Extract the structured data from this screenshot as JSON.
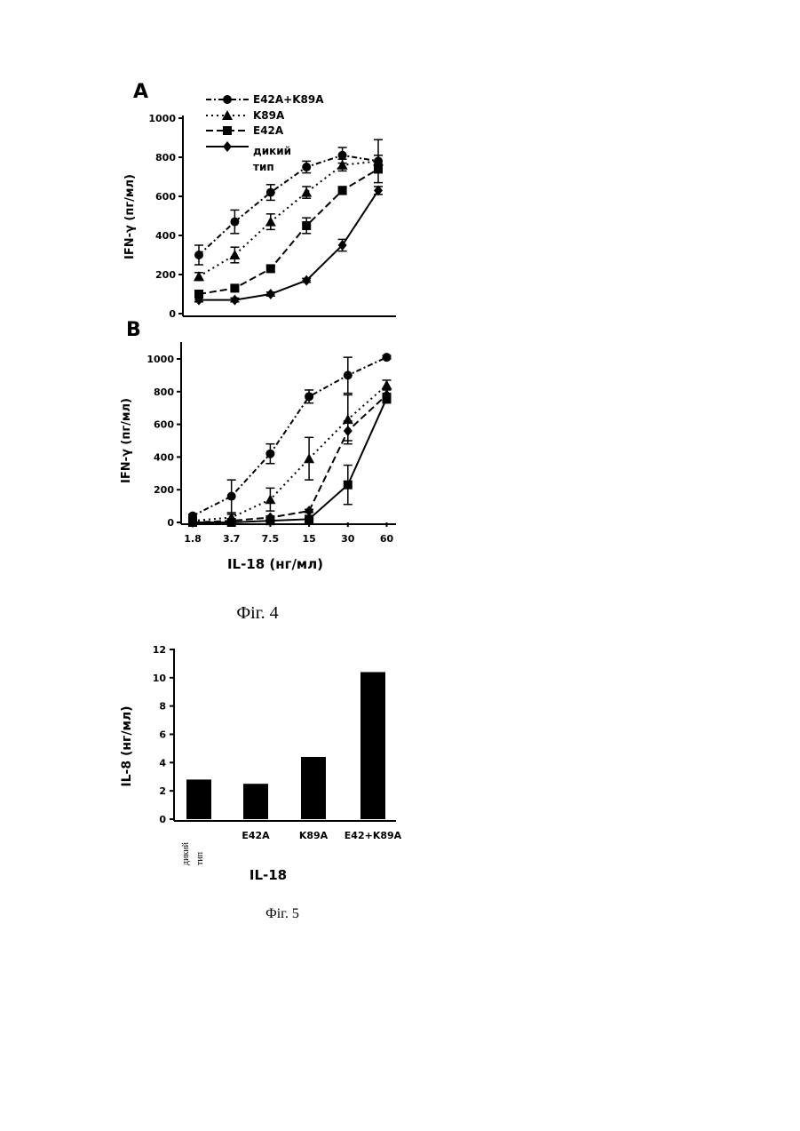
{
  "figures": {
    "fig4_caption": "Фіг. 4",
    "fig5_caption": "Фіг. 5"
  },
  "chart_data": [
    {
      "panel": "A",
      "type": "line",
      "ylabel": "IFN-γ (пг/мл)",
      "ylim": [
        0,
        1000
      ],
      "yticks": [
        "0",
        "200",
        "400",
        "600",
        "800",
        "1000"
      ],
      "categories": [
        "1.8",
        "3.7",
        "7.5",
        "15",
        "30",
        "60"
      ],
      "series": [
        {
          "name": "E42A+K89A",
          "marker": "circle",
          "dash": "6,3,2,3",
          "values": [
            300,
            470,
            620,
            750,
            810,
            780
          ],
          "errors": [
            50,
            60,
            40,
            30,
            40,
            30
          ]
        },
        {
          "name": "K89A",
          "marker": "triangle",
          "dash": "2,4",
          "values": [
            190,
            300,
            470,
            620,
            760,
            780
          ],
          "errors": [
            20,
            40,
            40,
            30,
            30,
            110
          ]
        },
        {
          "name": "E42A",
          "marker": "square",
          "dash": "8,4",
          "values": [
            100,
            130,
            230,
            450,
            630,
            740
          ],
          "errors": [
            15,
            10,
            15,
            40,
            20,
            20
          ]
        },
        {
          "name": "дикий тип",
          "marker": "diamond",
          "dash": "",
          "values": [
            70,
            70,
            100,
            170,
            350,
            630
          ],
          "errors": [
            10,
            10,
            10,
            10,
            30,
            20
          ]
        }
      ]
    },
    {
      "panel": "B",
      "type": "line",
      "ylabel": "IFN-γ (пг/мл)",
      "xlabel": "IL-18 (нг/мл)",
      "ylim": [
        0,
        1000
      ],
      "yticks": [
        "0",
        "200",
        "400",
        "600",
        "800",
        "1000"
      ],
      "categories": [
        "1.8",
        "3.7",
        "7.5",
        "15",
        "30",
        "60"
      ],
      "series": [
        {
          "marker": "circle",
          "dash": "6,3,2,3",
          "values": [
            40,
            160,
            420,
            770,
            900,
            1010
          ],
          "errors": [
            10,
            100,
            60,
            40,
            110,
            10
          ]
        },
        {
          "marker": "triangle",
          "dash": "2,4",
          "values": [
            10,
            30,
            140,
            390,
            630,
            840
          ],
          "errors": [
            10,
            20,
            70,
            130,
            150,
            30
          ]
        },
        {
          "marker": "diamond",
          "dash": "8,4",
          "values": [
            0,
            10,
            30,
            70,
            560,
            780
          ],
          "errors": [
            5,
            5,
            10,
            10,
            60,
            40
          ]
        },
        {
          "marker": "square",
          "dash": "",
          "values": [
            0,
            0,
            10,
            20,
            230,
            760
          ],
          "errors": [
            5,
            5,
            5,
            5,
            120,
            30
          ]
        }
      ]
    },
    {
      "type": "bar",
      "ylabel": "IL-8 (нг/мл)",
      "xlabel": "IL-18",
      "ylim": [
        0,
        12
      ],
      "yticks": [
        "0",
        "2",
        "4",
        "6",
        "8",
        "10",
        "12"
      ],
      "categories": [
        "дикий тип",
        "E42A",
        "K89A",
        "E42+K89A"
      ],
      "values": [
        2.8,
        2.5,
        4.4,
        10.4
      ]
    }
  ]
}
